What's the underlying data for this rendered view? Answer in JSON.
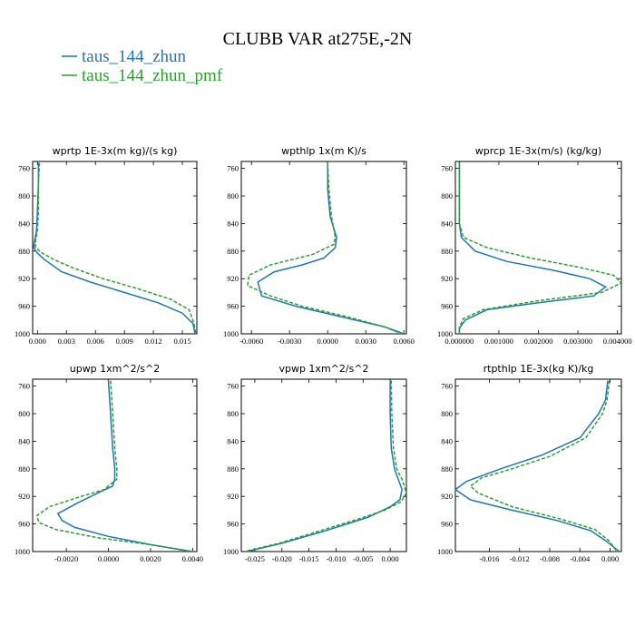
{
  "page": {
    "title": "CLUBB VAR at275E,-2N"
  },
  "legend": [
    {
      "name": "taus_144_zhun",
      "color": "#1f77b4",
      "dash": "solid"
    },
    {
      "name": "taus_144_zhun_pmf",
      "color": "#2ca02c",
      "dash": "dashed"
    }
  ],
  "chart_data": [
    {
      "type": "line",
      "title": "wprtp  1E-3x(m kg)/(s kg)",
      "xlim": [
        -0.0005,
        0.0165
      ],
      "ylim": [
        1000,
        750
      ],
      "xticks": [
        0.0,
        0.003,
        0.006,
        0.009,
        0.012,
        0.015
      ],
      "xtick_labels": [
        "0.000",
        "0.003",
        "0.006",
        "0.009",
        "0.012",
        "0.015"
      ],
      "yticks": [
        760,
        800,
        840,
        880,
        920,
        960,
        1000
      ],
      "ytick_labels": [
        "760",
        "800",
        "840",
        "880",
        "920",
        "960",
        "1000"
      ],
      "series": [
        {
          "name": "taus_144_zhun",
          "x": [
            0.0001,
            0.0001,
            0.0,
            -0.0001,
            -0.0003,
            -0.0004,
            0.0,
            0.0008,
            0.0025,
            0.0055,
            0.009,
            0.0125,
            0.015,
            0.0161,
            0.0163
          ],
          "y": [
            752,
            780,
            820,
            850,
            865,
            875,
            883,
            893,
            910,
            925,
            940,
            955,
            970,
            985,
            1000
          ]
        },
        {
          "name": "taus_144_zhun_pmf",
          "x": [
            0.0002,
            0.0001,
            0.0001,
            0.0,
            -0.0002,
            -0.0002,
            0.0005,
            0.0018,
            0.0038,
            0.0068,
            0.0105,
            0.0138,
            0.0157,
            0.0162,
            0.0164
          ],
          "y": [
            752,
            780,
            820,
            850,
            865,
            875,
            883,
            893,
            905,
            920,
            935,
            950,
            965,
            985,
            1000
          ]
        }
      ]
    },
    {
      "type": "line",
      "title": "wpthlp  1x(m K)/s",
      "xlim": [
        -0.0068,
        0.0062
      ],
      "ylim": [
        1000,
        750
      ],
      "xticks": [
        -0.006,
        -0.003,
        0.0,
        0.003,
        0.006
      ],
      "xtick_labels": [
        "-0.0060",
        "-0.0030",
        "0.0000",
        "0.0030",
        "0.0060"
      ],
      "yticks": [
        760,
        800,
        840,
        880,
        920,
        960,
        1000
      ],
      "ytick_labels": [
        "760",
        "800",
        "840",
        "880",
        "920",
        "960",
        "1000"
      ],
      "series": [
        {
          "name": "taus_144_zhun",
          "x": [
            0.0,
            0.0,
            0.0002,
            0.0007,
            0.0006,
            -0.0003,
            -0.002,
            -0.0042,
            -0.0055,
            -0.0052,
            -0.0025,
            0.001,
            0.0045,
            0.006
          ],
          "y": [
            752,
            790,
            830,
            860,
            875,
            890,
            900,
            910,
            925,
            945,
            960,
            975,
            990,
            1000
          ]
        },
        {
          "name": "taus_144_zhun_pmf",
          "x": [
            0.0,
            0.0001,
            0.0003,
            0.0006,
            0.0005,
            -0.0012,
            -0.0045,
            -0.0062,
            -0.0063,
            -0.0045,
            -0.002,
            0.0015,
            0.0045,
            0.0058
          ],
          "y": [
            752,
            790,
            830,
            860,
            870,
            885,
            900,
            915,
            930,
            945,
            960,
            975,
            990,
            1000
          ]
        }
      ]
    },
    {
      "type": "line",
      "title": "wprcp  1E-3x(m/s) (kg/kg)",
      "xlim": [
        -0.0001,
        0.0041
      ],
      "ylim": [
        1000,
        750
      ],
      "xticks": [
        0.0,
        0.001,
        0.002,
        0.003,
        0.004
      ],
      "xtick_labels": [
        "0.000000",
        "0.001000",
        "0.002000",
        "0.003000",
        "0.004000"
      ],
      "yticks": [
        760,
        800,
        840,
        880,
        920,
        960,
        1000
      ],
      "ytick_labels": [
        "760",
        "800",
        "840",
        "880",
        "920",
        "960",
        "1000"
      ],
      "series": [
        {
          "name": "taus_144_zhun",
          "x": [
            0.0,
            0.0,
            0.0,
            5e-05,
            0.0004,
            0.0012,
            0.0024,
            0.0033,
            0.0037,
            0.0034,
            0.002,
            0.0007,
            0.00015,
            0.0,
            0.0
          ],
          "y": [
            752,
            800,
            840,
            860,
            880,
            895,
            908,
            920,
            932,
            945,
            955,
            965,
            980,
            992,
            1000
          ]
        },
        {
          "name": "taus_144_zhun_pmf",
          "x": [
            0.0,
            0.0,
            0.0,
            0.0001,
            0.0007,
            0.0018,
            0.003,
            0.0039,
            0.0041,
            0.0036,
            0.002,
            0.0006,
            0.0001,
            0.0,
            0.0
          ],
          "y": [
            752,
            800,
            840,
            860,
            875,
            890,
            903,
            915,
            926,
            940,
            952,
            965,
            978,
            990,
            1000
          ]
        }
      ]
    },
    {
      "type": "line",
      "title": "upwp  1xm^2/s^2",
      "xlim": [
        -0.0036,
        0.0042
      ],
      "ylim": [
        1000,
        750
      ],
      "xticks": [
        -0.002,
        0.0,
        0.002,
        0.004
      ],
      "xtick_labels": [
        "-0.0020",
        "0.0000",
        "0.0020",
        "0.0040"
      ],
      "yticks": [
        760,
        800,
        840,
        880,
        920,
        960,
        1000
      ],
      "ytick_labels": [
        "760",
        "800",
        "840",
        "880",
        "920",
        "960",
        "1000"
      ],
      "series": [
        {
          "name": "taus_144_zhun",
          "x": [
            0.0,
            0.0001,
            0.0002,
            0.0003,
            0.0003,
            0.0002,
            -0.0005,
            -0.0015,
            -0.0024,
            -0.0022,
            -0.0016,
            0.0,
            0.002,
            0.0038,
            0.0041
          ],
          "y": [
            752,
            800,
            850,
            880,
            895,
            905,
            915,
            930,
            945,
            955,
            965,
            978,
            990,
            999,
            1000
          ]
        },
        {
          "name": "taus_144_zhun_pmf",
          "x": [
            0.0001,
            0.0002,
            0.0003,
            0.0004,
            0.0004,
            -0.0002,
            -0.0015,
            -0.0028,
            -0.0034,
            -0.0033,
            -0.0025,
            -0.0005,
            0.002,
            0.0037,
            0.004
          ],
          "y": [
            752,
            800,
            850,
            880,
            895,
            910,
            922,
            935,
            948,
            958,
            968,
            980,
            990,
            999,
            1000
          ]
        }
      ]
    },
    {
      "type": "line",
      "title": "vpwp  1xm^2/s^2",
      "xlim": [
        -0.0275,
        0.003
      ],
      "ylim": [
        1000,
        750
      ],
      "xticks": [
        -0.025,
        -0.02,
        -0.015,
        -0.01,
        -0.005,
        0.0
      ],
      "xtick_labels": [
        "-0.025",
        "-0.020",
        "-0.015",
        "-0.010",
        "-0.005",
        "0.000"
      ],
      "yticks": [
        760,
        800,
        840,
        880,
        920,
        960,
        1000
      ],
      "ytick_labels": [
        "760",
        "800",
        "840",
        "880",
        "920",
        "960",
        "1000"
      ],
      "series": [
        {
          "name": "taus_144_zhun",
          "x": [
            0.0,
            0.0,
            0.0002,
            0.0008,
            0.0015,
            0.0022,
            0.0018,
            0.0,
            -0.004,
            -0.012,
            -0.02,
            -0.0265
          ],
          "y": [
            752,
            800,
            850,
            880,
            895,
            910,
            925,
            935,
            950,
            970,
            988,
            1000
          ]
        },
        {
          "name": "taus_144_zhun_pmf",
          "x": [
            0.0002,
            0.0003,
            0.0006,
            0.0012,
            0.0022,
            0.003,
            0.002,
            -0.001,
            -0.006,
            -0.013,
            -0.0205,
            -0.027
          ],
          "y": [
            752,
            800,
            850,
            880,
            895,
            915,
            928,
            940,
            953,
            970,
            988,
            1000
          ]
        }
      ]
    },
    {
      "type": "line",
      "title": "rtpthlp  1E-3x(kg K)/kg",
      "xlim": [
        -0.0205,
        0.0015
      ],
      "ylim": [
        1000,
        750
      ],
      "xticks": [
        -0.016,
        -0.012,
        -0.008,
        -0.004,
        0.0
      ],
      "xtick_labels": [
        "-0.016",
        "-0.012",
        "-0.008",
        "-0.004",
        "0.000"
      ],
      "yticks": [
        760,
        800,
        840,
        880,
        920,
        960,
        1000
      ],
      "ytick_labels": [
        "760",
        "800",
        "840",
        "880",
        "920",
        "960",
        "1000"
      ],
      "series": [
        {
          "name": "taus_144_zhun",
          "x": [
            -0.0003,
            -0.0006,
            -0.0015,
            -0.004,
            -0.009,
            -0.0145,
            -0.019,
            -0.0205,
            -0.0185,
            -0.013,
            -0.007,
            -0.0025,
            -0.0005,
            0.001,
            0.0012
          ],
          "y": [
            752,
            780,
            800,
            835,
            860,
            880,
            898,
            910,
            925,
            940,
            955,
            970,
            985,
            998,
            1000
          ]
        },
        {
          "name": "taus_144_zhun_pmf",
          "x": [
            -0.0001,
            -0.0004,
            -0.001,
            -0.0032,
            -0.008,
            -0.013,
            -0.017,
            -0.0185,
            -0.0175,
            -0.013,
            -0.0065,
            -0.002,
            -0.0002,
            0.0008,
            0.0011
          ],
          "y": [
            752,
            780,
            800,
            835,
            862,
            880,
            893,
            905,
            915,
            935,
            953,
            968,
            984,
            998,
            1000
          ]
        }
      ]
    }
  ]
}
